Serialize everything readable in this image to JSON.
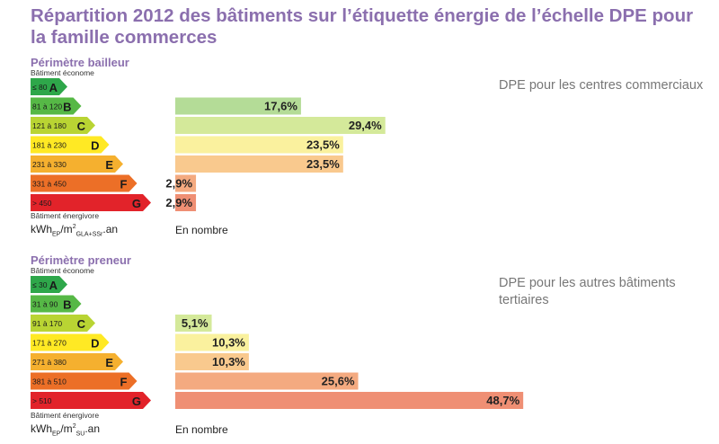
{
  "title": "Répartition 2012 des bâtiments sur l’étiquette énergie de l’échelle DPE pour la famille commerces",
  "chart_data": [
    {
      "type": "bar",
      "section_title": "Périmètre bailleur",
      "description": "DPE pour les centres commerciaux",
      "top_label": "Bâtiment économe",
      "bottom_label": "Bâtiment énergivore",
      "unit": {
        "main": "kWh",
        "sub1": "EP",
        "mid": "/m",
        "sup": "2",
        "sub2": "GLA+SSr",
        "end": ".an"
      },
      "count_label": "En nombre",
      "classes": [
        {
          "range": "≤ 80",
          "letter": "A",
          "color": "#2ea74a",
          "bar_color": "#a3d38e",
          "value": null,
          "value_label": ""
        },
        {
          "range": "81 à 120",
          "letter": "B",
          "color": "#56b846",
          "bar_color": "#b4dc97",
          "value": 17.6,
          "value_label": "17,6%"
        },
        {
          "range": "121 à 180",
          "letter": "C",
          "color": "#b9d433",
          "bar_color": "#d4e99a",
          "value": 29.4,
          "value_label": "29,4%"
        },
        {
          "range": "181 à 230",
          "letter": "D",
          "color": "#ffe924",
          "bar_color": "#faf19e",
          "value": 23.5,
          "value_label": "23,5%"
        },
        {
          "range": "231 à 330",
          "letter": "E",
          "color": "#f5b02f",
          "bar_color": "#f9c98e",
          "value": 23.5,
          "value_label": "23,5%"
        },
        {
          "range": "331 à 450",
          "letter": "F",
          "color": "#ec6f27",
          "bar_color": "#f4aa80",
          "value": 2.9,
          "value_label": "2,9%"
        },
        {
          "range": "> 450",
          "letter": "G",
          "color": "#e2232a",
          "bar_color": "#ef8f74",
          "value": 2.9,
          "value_label": "2,9%"
        }
      ]
    },
    {
      "type": "bar",
      "section_title": "Périmètre preneur",
      "description": "DPE pour les autres bâtiments tertiaires",
      "top_label": "Bâtiment économe",
      "bottom_label": "Bâtiment énergivore",
      "unit": {
        "main": "kWh",
        "sub1": "EP",
        "mid": "/m",
        "sup": "2",
        "sub2": "SU",
        "end": ".an"
      },
      "count_label": "En nombre",
      "classes": [
        {
          "range": "≤ 30",
          "letter": "A",
          "color": "#2ea74a",
          "bar_color": "#a3d38e",
          "value": null,
          "value_label": ""
        },
        {
          "range": "31 à 90",
          "letter": "B",
          "color": "#56b846",
          "bar_color": "#b4dc97",
          "value": null,
          "value_label": ""
        },
        {
          "range": "91 à 170",
          "letter": "C",
          "color": "#b9d433",
          "bar_color": "#d4e99a",
          "value": 5.1,
          "value_label": "5,1%"
        },
        {
          "range": "171 à 270",
          "letter": "D",
          "color": "#ffe924",
          "bar_color": "#faf19e",
          "value": 10.3,
          "value_label": "10,3%"
        },
        {
          "range": "271 à 380",
          "letter": "E",
          "color": "#f5b02f",
          "bar_color": "#f9c98e",
          "value": 10.3,
          "value_label": "10,3%"
        },
        {
          "range": "381 à 510",
          "letter": "F",
          "color": "#ec6f27",
          "bar_color": "#f4aa80",
          "value": 25.6,
          "value_label": "25,6%"
        },
        {
          "range": "> 510",
          "letter": "G",
          "color": "#e2232a",
          "bar_color": "#ef8f74",
          "value": 48.7,
          "value_label": "48,7%"
        }
      ]
    }
  ]
}
